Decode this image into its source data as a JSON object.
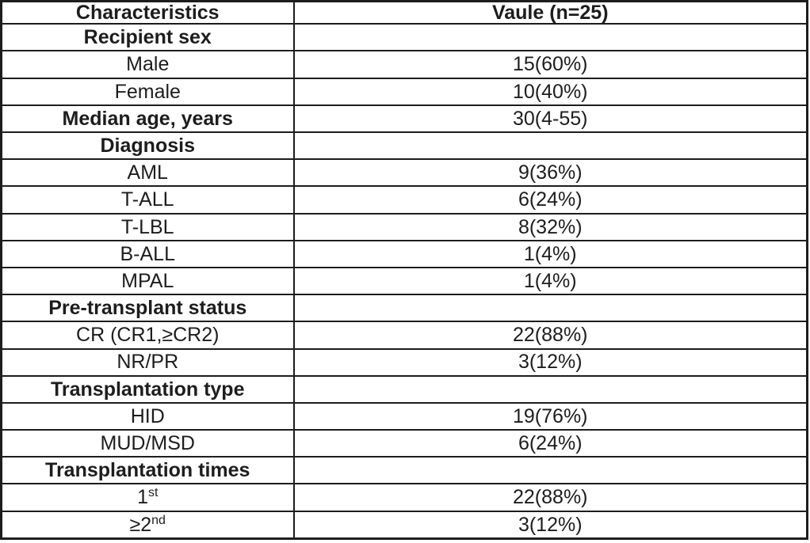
{
  "table": {
    "title_note": "Patient characteristics table",
    "columns": [
      {
        "label": "Characteristics"
      },
      {
        "label": "Vaule (n=25)"
      }
    ],
    "rows": [
      {
        "label": "Recipient sex",
        "sup": "",
        "value": "",
        "bold": true
      },
      {
        "label": "Male",
        "sup": "",
        "value": "15(60%)",
        "bold": false
      },
      {
        "label": "Female",
        "sup": "",
        "value": "10(40%)",
        "bold": false
      },
      {
        "label": "Median age, years",
        "sup": "",
        "value": "30(4-55)",
        "bold": true
      },
      {
        "label": "Diagnosis",
        "sup": "",
        "value": "",
        "bold": true
      },
      {
        "label": "AML",
        "sup": "",
        "value": "9(36%)",
        "bold": false
      },
      {
        "label": "T-ALL",
        "sup": "",
        "value": "6(24%)",
        "bold": false
      },
      {
        "label": "T-LBL",
        "sup": "",
        "value": "8(32%)",
        "bold": false
      },
      {
        "label": "B-ALL",
        "sup": "",
        "value": "1(4%)",
        "bold": false
      },
      {
        "label": "MPAL",
        "sup": "",
        "value": "1(4%)",
        "bold": false
      },
      {
        "label": "Pre-transplant status",
        "sup": "",
        "value": "",
        "bold": true
      },
      {
        "label": "CR (CR1,≥CR2)",
        "sup": "",
        "value": "22(88%)",
        "bold": false
      },
      {
        "label": "NR/PR",
        "sup": "",
        "value": "3(12%)",
        "bold": false
      },
      {
        "label": "Transplantation type",
        "sup": "",
        "value": "",
        "bold": true
      },
      {
        "label": "HID",
        "sup": "",
        "value": "19(76%)",
        "bold": false
      },
      {
        "label": "MUD/MSD",
        "sup": "",
        "value": "6(24%)",
        "bold": false
      },
      {
        "label": "Transplantation times",
        "sup": "",
        "value": "",
        "bold": true
      },
      {
        "label": "1",
        "sup": "st",
        "value": "22(88%)",
        "bold": false
      },
      {
        "label": "≥2",
        "sup": "nd",
        "value": "3(12%)",
        "bold": false
      }
    ]
  },
  "colors": {
    "text": "#1d1d1d",
    "border": "#1d1d1d",
    "background": "#ffffff"
  }
}
